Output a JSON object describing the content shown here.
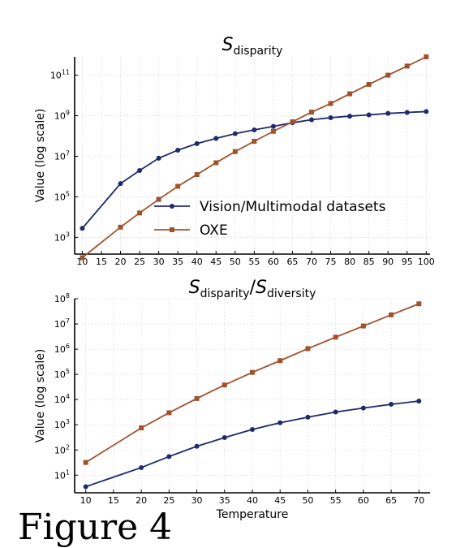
{
  "chart_data": [
    {
      "type": "line",
      "title_base": "S",
      "title_sub": "disparity",
      "ylabel": "Value (log scale)",
      "xlabel": "",
      "yscale": "log",
      "ylim": [
        150,
        800000000000
      ],
      "xlim": [
        8,
        101
      ],
      "x_ticks": [
        10,
        15,
        20,
        25,
        30,
        35,
        40,
        45,
        50,
        55,
        60,
        65,
        70,
        75,
        80,
        85,
        90,
        95,
        100
      ],
      "y_ticks": [
        {
          "base": "10",
          "exp": "3",
          "value": 1000
        },
        {
          "base": "10",
          "exp": "5",
          "value": 100000
        },
        {
          "base": "10",
          "exp": "7",
          "value": 10000000
        },
        {
          "base": "10",
          "exp": "9",
          "value": 1000000000
        },
        {
          "base": "10",
          "exp": "11",
          "value": 100000000000
        }
      ],
      "grid": true,
      "legend_position": "lower-right",
      "series": [
        {
          "name": "Vision/Multimodal datasets",
          "color": "#1f2a6b",
          "marker": "circle",
          "x": [
            10,
            20,
            25,
            30,
            35,
            40,
            45,
            50,
            55,
            60,
            65,
            70,
            75,
            80,
            85,
            90,
            95,
            100
          ],
          "values": [
            2800,
            450000,
            2000000,
            8000000,
            20000000,
            42000000,
            76000000,
            130000000,
            200000000,
            300000000,
            450000000,
            630000000,
            800000000,
            950000000,
            1100000000,
            1300000000,
            1450000000,
            1600000000
          ]
        },
        {
          "name": "OXE",
          "color": "#a0522d",
          "marker": "square",
          "x": [
            10,
            20,
            25,
            30,
            35,
            40,
            45,
            50,
            55,
            60,
            65,
            70,
            75,
            80,
            85,
            90,
            95,
            100
          ],
          "values": [
            100,
            3200,
            16000,
            75000,
            330000,
            1250000,
            4800000,
            17000000,
            55000000,
            170000000,
            500000000,
            1500000000,
            4000000000,
            12000000000,
            35000000000,
            100000000000,
            280000000000,
            800000000000
          ]
        }
      ]
    },
    {
      "type": "line",
      "title_parts": [
        {
          "base": "S",
          "sub": "disparity"
        },
        {
          "base": "S",
          "sub": "diversity"
        }
      ],
      "title_separator": "/",
      "ylabel": "Value (log scale)",
      "xlabel": "Temperature",
      "yscale": "log",
      "ylim": [
        2,
        100000000
      ],
      "xlim": [
        8,
        72
      ],
      "x_ticks": [
        10,
        15,
        20,
        25,
        30,
        35,
        40,
        45,
        50,
        55,
        60,
        65,
        70
      ],
      "y_ticks": [
        {
          "base": "10",
          "exp": "1",
          "value": 10
        },
        {
          "base": "10",
          "exp": "2",
          "value": 100
        },
        {
          "base": "10",
          "exp": "3",
          "value": 1000
        },
        {
          "base": "10",
          "exp": "4",
          "value": 10000
        },
        {
          "base": "10",
          "exp": "5",
          "value": 100000
        },
        {
          "base": "10",
          "exp": "6",
          "value": 1000000
        },
        {
          "base": "10",
          "exp": "7",
          "value": 10000000
        },
        {
          "base": "10",
          "exp": "8",
          "value": 100000000
        }
      ],
      "grid": true,
      "legend_position": "none",
      "series": [
        {
          "color": "#1f2a6b",
          "marker": "circle",
          "x": [
            10,
            20,
            25,
            30,
            35,
            40,
            45,
            50,
            55,
            60,
            65,
            70
          ],
          "values": [
            3.5,
            20,
            55,
            140,
            310,
            650,
            1200,
            2000,
            3200,
            4600,
            6500,
            8700
          ]
        },
        {
          "color": "#a0522d",
          "marker": "square",
          "x": [
            10,
            20,
            25,
            30,
            35,
            40,
            45,
            50,
            55,
            60,
            65,
            70
          ],
          "values": [
            32,
            750,
            3000,
            11000,
            38000,
            120000,
            350000,
            1050000,
            3000000,
            8300000,
            23000000,
            63000000
          ]
        }
      ]
    }
  ],
  "caption_fragment": "Figure 4"
}
